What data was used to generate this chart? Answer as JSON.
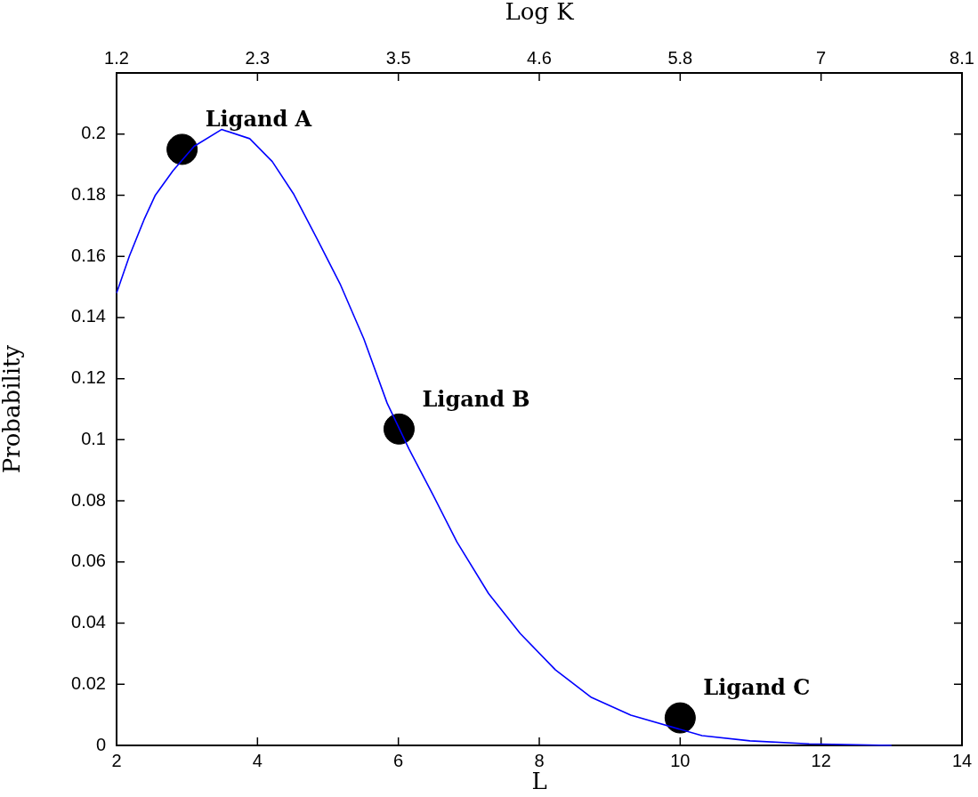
{
  "chart_data": {
    "type": "line",
    "xlabel": "L",
    "ylabel": "Probability",
    "x2label": "Log K",
    "xlim": [
      2,
      14
    ],
    "xticks": [
      2,
      4,
      6,
      8,
      10,
      12,
      14
    ],
    "x2lim": [
      1.2,
      8.1
    ],
    "x2ticks": [
      1.2,
      {
        "value": 2.35,
        "label": "2.3"
      },
      3.5,
      {
        "value": 4.65,
        "label": "4.6"
      },
      5.8,
      {
        "value": 6.95,
        "label": "7"
      },
      8.1
    ],
    "ylim": [
      0,
      0.22
    ],
    "yticks": [
      0,
      0.02,
      0.04,
      0.06,
      0.08,
      0.1,
      0.12,
      0.14,
      0.16,
      0.18,
      0.2
    ],
    "grid": false,
    "legend": false,
    "series": [
      {
        "color": "#0000ff",
        "marker": "none",
        "line_style": "solid",
        "x": [
          2,
          2.18,
          2.39,
          2.55,
          2.8,
          3.1,
          3.49,
          3.89,
          4.21,
          4.51,
          4.84,
          5.18,
          5.51,
          5.84,
          6.15,
          6.49,
          6.83,
          7.28,
          7.73,
          8.23,
          8.74,
          9.3,
          10.31,
          10.99,
          11.83,
          12.5,
          13
        ],
        "values": [
          0.148,
          0.16,
          0.172,
          0.18,
          0.188,
          0.196,
          0.2015,
          0.1985,
          0.191,
          0.1805,
          0.166,
          0.1506,
          0.133,
          0.112,
          0.097,
          0.082,
          0.0666,
          0.0497,
          0.0366,
          0.0247,
          0.0157,
          0.0099,
          0.0032,
          0.0015,
          0.0005,
          0.0002,
          0
        ]
      },
      {
        "type": "scatter",
        "color": "#000000",
        "marker": "circle",
        "x": [
          2.93,
          6.01,
          10
        ],
        "values": [
          0.195,
          0.1035,
          0.009
        ]
      }
    ],
    "annotations": [
      {
        "text": "Ligand A",
        "x": 2.93,
        "y": 0.195
      },
      {
        "text": "Ligand B",
        "x": 6.01,
        "y": 0.1035
      },
      {
        "text": "Ligand C",
        "x": 10,
        "y": 0.009
      }
    ]
  }
}
